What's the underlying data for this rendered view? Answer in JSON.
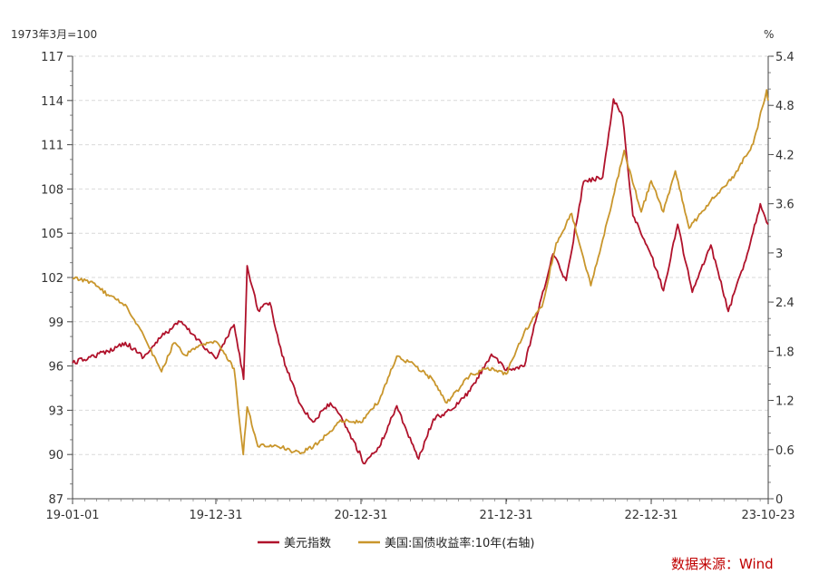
{
  "chart_data": {
    "type": "line",
    "left_unit": "1973年3月=100",
    "right_unit": "%",
    "source": "数据来源：Wind",
    "x_tick_labels": [
      "19-01-01",
      "19-12-31",
      "20-12-31",
      "21-12-31",
      "22-12-31",
      "23-10-23"
    ],
    "y_left": {
      "min": 87,
      "max": 117,
      "ticks": [
        "87",
        "90",
        "93",
        "96",
        "99",
        "102",
        "105",
        "108",
        "111",
        "114",
        "117"
      ]
    },
    "y_right": {
      "min": 0,
      "max": 5.4,
      "ticks": [
        "0",
        "0.6",
        "1.2",
        "1.8",
        "2.4",
        "3",
        "3.6",
        "4.2",
        "4.8",
        "5.4"
      ]
    },
    "grid": "horizontal-dashed",
    "legend_position": "bottom",
    "series": [
      {
        "name": "美元指数",
        "axis": "left",
        "color": "#b0122b",
        "points": [
          [
            "2019-01-01",
            96.2
          ],
          [
            "2019-02-15",
            96.6
          ],
          [
            "2019-04-01",
            97.0
          ],
          [
            "2019-05-15",
            97.6
          ],
          [
            "2019-07-01",
            96.6
          ],
          [
            "2019-08-15",
            98.0
          ],
          [
            "2019-10-01",
            99.0
          ],
          [
            "2019-11-15",
            97.8
          ],
          [
            "2019-12-31",
            96.5
          ],
          [
            "2020-02-15",
            98.8
          ],
          [
            "2020-03-10",
            95.1
          ],
          [
            "2020-03-19",
            102.8
          ],
          [
            "2020-04-15",
            99.8
          ],
          [
            "2020-05-15",
            100.3
          ],
          [
            "2020-06-15",
            96.7
          ],
          [
            "2020-07-31",
            93.4
          ],
          [
            "2020-09-01",
            92.2
          ],
          [
            "2020-10-15",
            93.5
          ],
          [
            "2020-11-15",
            92.3
          ],
          [
            "2020-12-31",
            89.9
          ],
          [
            "2021-01-06",
            89.4
          ],
          [
            "2021-02-15",
            90.5
          ],
          [
            "2021-03-31",
            93.3
          ],
          [
            "2021-05-15",
            90.3
          ],
          [
            "2021-05-25",
            89.7
          ],
          [
            "2021-07-01",
            92.4
          ],
          [
            "2021-08-15",
            93.0
          ],
          [
            "2021-10-01",
            94.3
          ],
          [
            "2021-11-24",
            96.8
          ],
          [
            "2021-12-31",
            95.7
          ],
          [
            "2022-02-15",
            96.0
          ],
          [
            "2022-03-15",
            99.0
          ],
          [
            "2022-04-28",
            103.6
          ],
          [
            "2022-05-31",
            101.8
          ],
          [
            "2022-07-14",
            108.5
          ],
          [
            "2022-08-31",
            108.8
          ],
          [
            "2022-09-27",
            114.1
          ],
          [
            "2022-10-20",
            112.9
          ],
          [
            "2022-11-15",
            106.2
          ],
          [
            "2022-12-31",
            103.5
          ],
          [
            "2023-01-31",
            101.1
          ],
          [
            "2023-03-08",
            105.6
          ],
          [
            "2023-04-14",
            101.0
          ],
          [
            "2023-05-31",
            104.2
          ],
          [
            "2023-07-14",
            99.7
          ],
          [
            "2023-08-31",
            103.6
          ],
          [
            "2023-10-03",
            107.0
          ],
          [
            "2023-10-23",
            105.6
          ]
        ]
      },
      {
        "name": "美国:国债收益率:10年(右轴)",
        "axis": "right",
        "color": "#c9962c",
        "points": [
          [
            "2019-01-01",
            2.69
          ],
          [
            "2019-02-15",
            2.65
          ],
          [
            "2019-04-01",
            2.49
          ],
          [
            "2019-05-15",
            2.37
          ],
          [
            "2019-06-30",
            2.0
          ],
          [
            "2019-08-15",
            1.55
          ],
          [
            "2019-09-15",
            1.9
          ],
          [
            "2019-10-15",
            1.75
          ],
          [
            "2019-11-15",
            1.85
          ],
          [
            "2019-12-31",
            1.92
          ],
          [
            "2020-02-15",
            1.59
          ],
          [
            "2020-03-09",
            0.54
          ],
          [
            "2020-03-19",
            1.12
          ],
          [
            "2020-04-15",
            0.64
          ],
          [
            "2020-05-31",
            0.65
          ],
          [
            "2020-07-31",
            0.55
          ],
          [
            "2020-09-15",
            0.68
          ],
          [
            "2020-11-09",
            0.96
          ],
          [
            "2020-12-31",
            0.93
          ],
          [
            "2021-02-15",
            1.2
          ],
          [
            "2021-03-31",
            1.74
          ],
          [
            "2021-05-15",
            1.63
          ],
          [
            "2021-06-30",
            1.45
          ],
          [
            "2021-08-04",
            1.17
          ],
          [
            "2021-09-30",
            1.5
          ],
          [
            "2021-11-15",
            1.6
          ],
          [
            "2021-12-31",
            1.52
          ],
          [
            "2022-02-15",
            2.04
          ],
          [
            "2022-03-31",
            2.34
          ],
          [
            "2022-05-06",
            3.12
          ],
          [
            "2022-06-14",
            3.48
          ],
          [
            "2022-08-01",
            2.6
          ],
          [
            "2022-09-15",
            3.45
          ],
          [
            "2022-10-24",
            4.25
          ],
          [
            "2022-12-06",
            3.5
          ],
          [
            "2022-12-31",
            3.88
          ],
          [
            "2023-01-31",
            3.5
          ],
          [
            "2023-03-02",
            4.0
          ],
          [
            "2023-04-06",
            3.3
          ],
          [
            "2023-05-31",
            3.64
          ],
          [
            "2023-07-31",
            3.96
          ],
          [
            "2023-09-15",
            4.33
          ],
          [
            "2023-10-19",
            4.99
          ],
          [
            "2023-10-23",
            4.86
          ]
        ]
      }
    ]
  }
}
